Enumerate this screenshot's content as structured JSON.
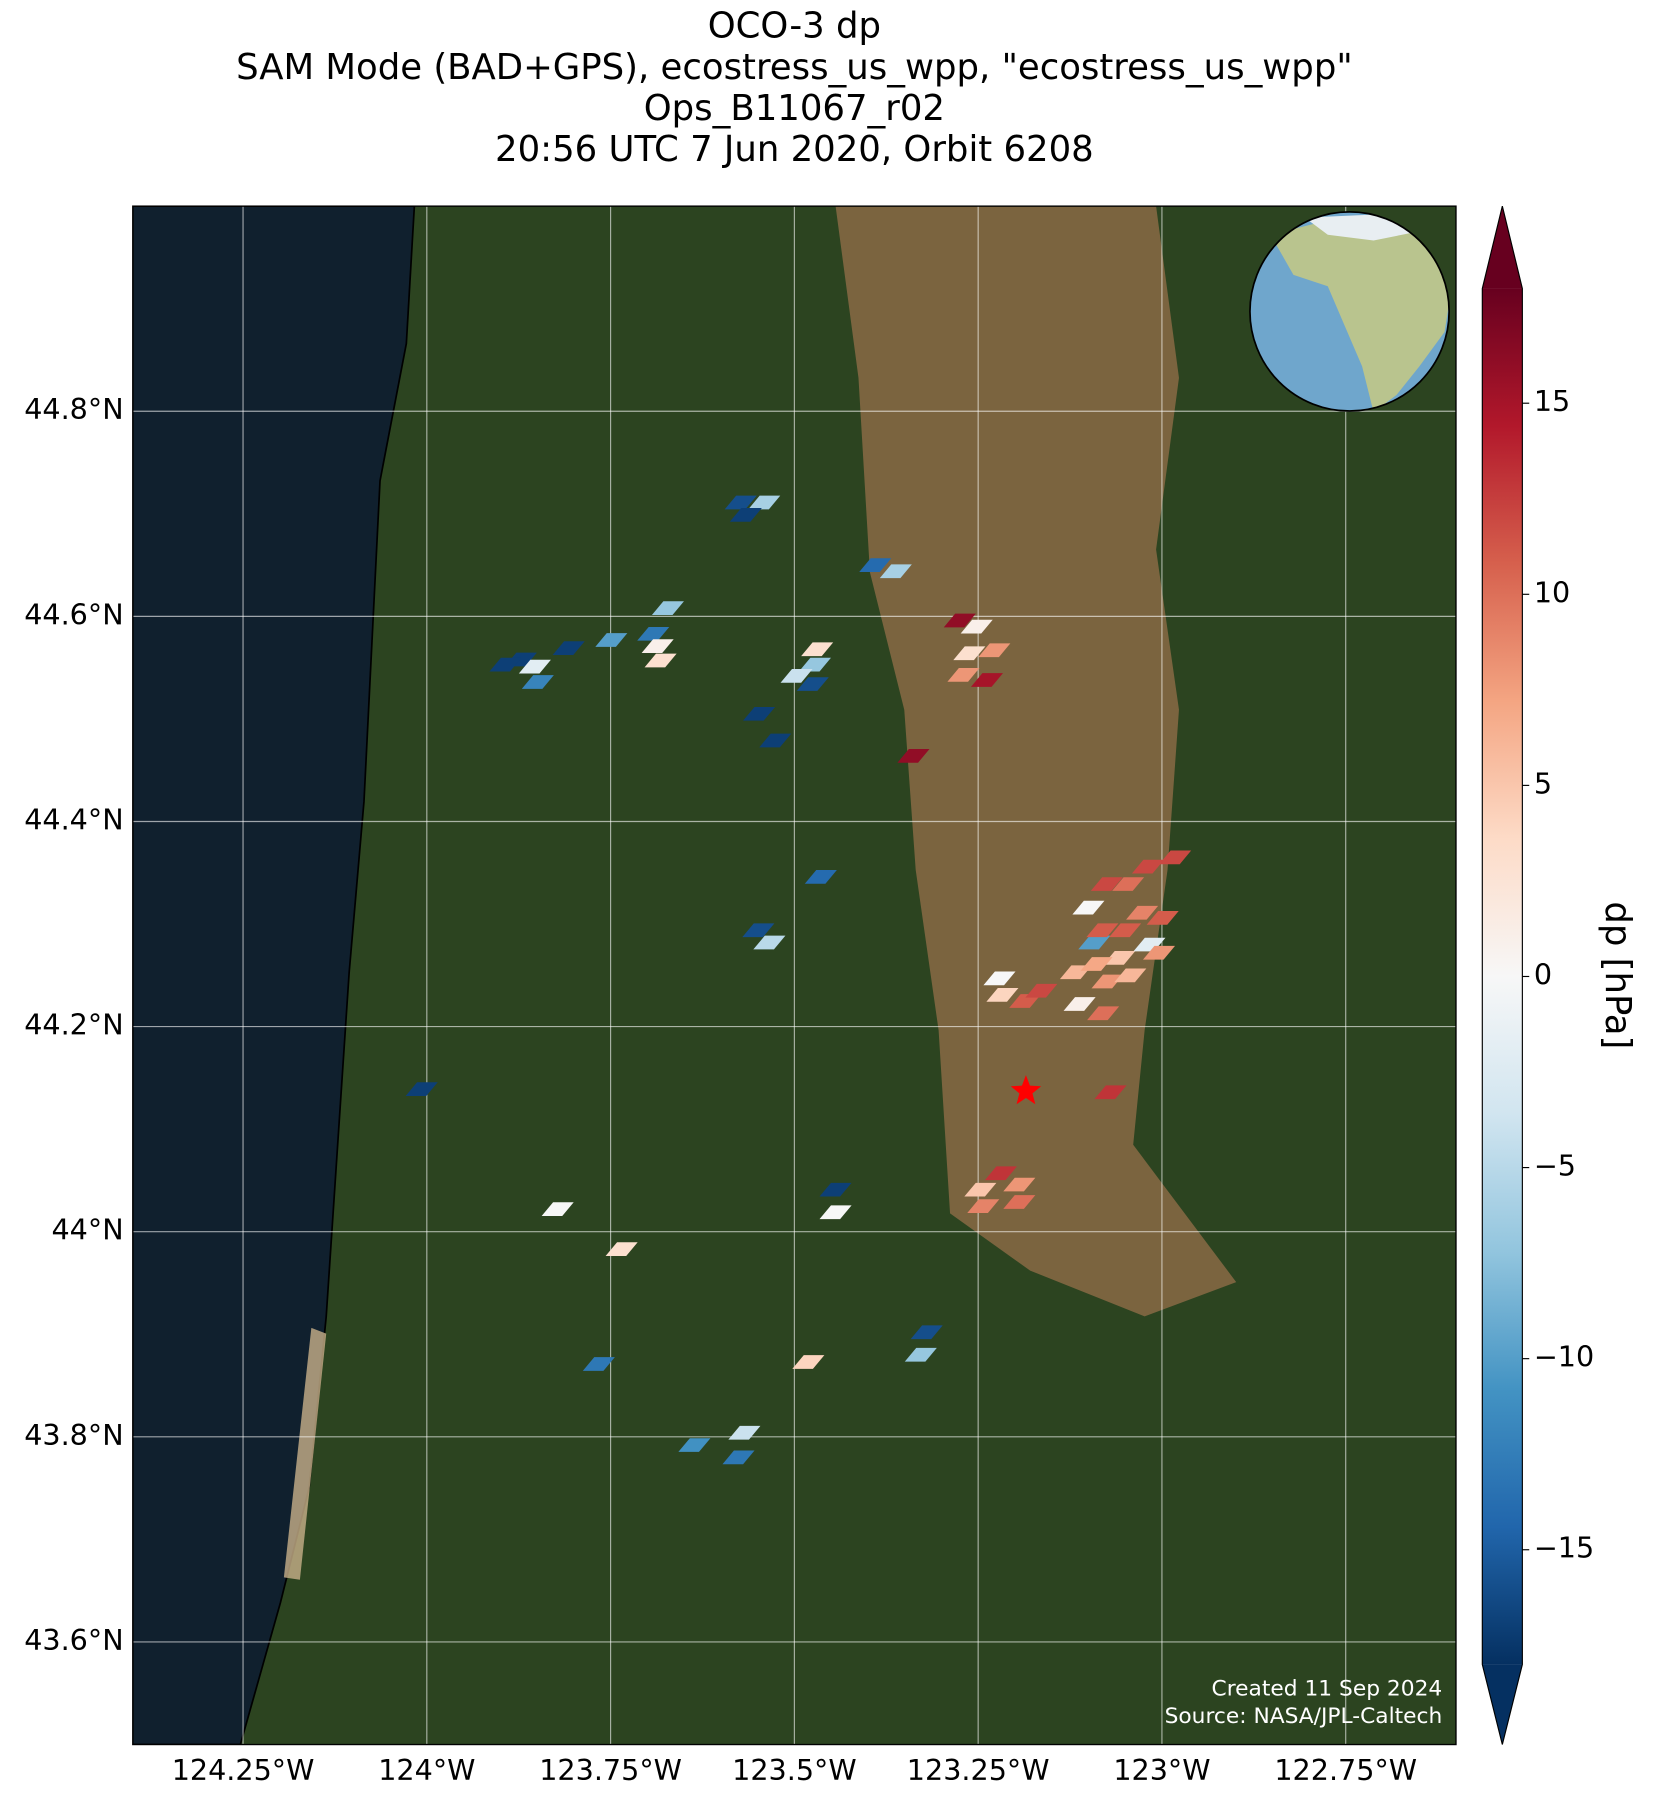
{
  "chart_data": {
    "type": "map",
    "title": [
      "OCO-3 dp",
      "SAM Mode (BAD+GPS), ecostress_us_wpp, \"ecostress_us_wpp\"",
      "Ops_B11067_r02",
      "20:56 UTC 7 Jun 2020, Orbit 6208"
    ],
    "xlim": [
      -124.4,
      -122.6
    ],
    "ylim": [
      43.5,
      45.0
    ],
    "xticks": [
      {
        "value": -124.25,
        "label": "124.25°W"
      },
      {
        "value": -124,
        "label": "124°W"
      },
      {
        "value": -123.75,
        "label": "123.75°W"
      },
      {
        "value": -123.5,
        "label": "123.5°W"
      },
      {
        "value": -123.25,
        "label": "123.25°W"
      },
      {
        "value": -123,
        "label": "123°W"
      },
      {
        "value": -122.75,
        "label": "122.75°W"
      }
    ],
    "yticks": [
      {
        "value": 43.6,
        "label": "43.6°N"
      },
      {
        "value": 43.8,
        "label": "43.8°N"
      },
      {
        "value": 44,
        "label": "44°N"
      },
      {
        "value": 44.2,
        "label": "44.2°N"
      },
      {
        "value": 44.4,
        "label": "44.4°N"
      },
      {
        "value": 44.6,
        "label": "44.6°N"
      },
      {
        "value": 44.8,
        "label": "44.8°N"
      }
    ],
    "grid": true,
    "colorbar_label": "dp [hPa]",
    "clim": [
      -18,
      18
    ],
    "colormap": [
      "#053061",
      "#2166ac",
      "#4393c3",
      "#92c5de",
      "#d1e5f0",
      "#f7f7f7",
      "#fddbc7",
      "#f4a582",
      "#d6604d",
      "#b2182b",
      "#67001f"
    ],
    "cticks": [
      {
        "value": -15,
        "label": "−15"
      },
      {
        "value": -10,
        "label": "−10"
      },
      {
        "value": -5,
        "label": "−5"
      },
      0,
      5,
      10,
      15
    ],
    "target": [
      -123.185,
      44.137
    ],
    "credits": [
      "Created 11 Sep 2024",
      "Source: NASA/JPL-Caltech"
    ],
    "footprints": [
      [
        -123.573,
        44.711,
        -16
      ],
      [
        -123.541,
        44.711,
        -6
      ],
      [
        -123.566,
        44.699,
        -17
      ],
      [
        -123.39,
        44.65,
        -14
      ],
      [
        -123.362,
        44.644,
        -6
      ],
      [
        -123.672,
        44.608,
        -7
      ],
      [
        -123.692,
        44.583,
        -13
      ],
      [
        -123.686,
        44.571,
        1
      ],
      [
        -123.682,
        44.557,
        3
      ],
      [
        -123.749,
        44.577,
        -10
      ],
      [
        -123.807,
        44.569,
        -17
      ],
      [
        -123.872,
        44.558,
        -17
      ],
      [
        -123.853,
        44.551,
        -2
      ],
      [
        -123.849,
        44.536,
        -12
      ],
      [
        -123.893,
        44.553,
        -17
      ],
      [
        -123.469,
        44.568,
        3
      ],
      [
        -123.472,
        44.553,
        -7
      ],
      [
        -123.497,
        44.542,
        -4
      ],
      [
        -123.475,
        44.534,
        -16
      ],
      [
        -123.548,
        44.505,
        -17
      ],
      [
        -123.526,
        44.479,
        -17
      ],
      [
        -123.275,
        44.596,
        16
      ],
      [
        -123.252,
        44.59,
        1
      ],
      [
        -123.262,
        44.564,
        3
      ],
      [
        -123.228,
        44.567,
        8
      ],
      [
        -123.27,
        44.543,
        8
      ],
      [
        -123.238,
        44.538,
        15
      ],
      [
        -123.338,
        44.464,
        16
      ],
      [
        -123.464,
        44.346,
        -14
      ],
      [
        -123.549,
        44.294,
        -16
      ],
      [
        -123.534,
        44.282,
        -5
      ],
      [
        -124.007,
        44.139,
        -17
      ],
      [
        -123.822,
        44.022,
        0
      ],
      [
        -123.735,
        43.983,
        3
      ],
      [
        -123.444,
        44.041,
        -17
      ],
      [
        -123.444,
        44.019,
        0
      ],
      [
        -123.766,
        43.871,
        -13
      ],
      [
        -123.481,
        43.873,
        4
      ],
      [
        -123.32,
        43.902,
        -16
      ],
      [
        -123.328,
        43.88,
        -7
      ],
      [
        -123.636,
        43.792,
        -11
      ],
      [
        -123.568,
        43.804,
        -4
      ],
      [
        -123.576,
        43.78,
        -13
      ],
      [
        -123.221,
        44.247,
        0
      ],
      [
        -123.217,
        44.231,
        4
      ],
      [
        -123.186,
        44.225,
        11
      ],
      [
        -123.164,
        44.235,
        12
      ],
      [
        -123.1,
        44.316,
        0
      ],
      [
        -123.092,
        44.282,
        -10
      ],
      [
        -123.112,
        44.222,
        1
      ],
      [
        -123.08,
        44.213,
        10
      ],
      [
        -123.074,
        44.244,
        8
      ],
      [
        -123.058,
        44.267,
        5
      ],
      [
        -123.05,
        44.294,
        11
      ],
      [
        -123.075,
        44.339,
        12
      ],
      [
        -123.046,
        44.339,
        10
      ],
      [
        -123.019,
        44.356,
        12
      ],
      [
        -122.982,
        44.365,
        12
      ],
      [
        -123.017,
        44.28,
        -2
      ],
      [
        -123.027,
        44.311,
        9
      ],
      [
        -123.117,
        44.253,
        6
      ],
      [
        -123.089,
        44.261,
        7
      ],
      [
        -123.043,
        44.25,
        6
      ],
      [
        -123.004,
        44.272,
        8
      ],
      [
        -123.081,
        44.294,
        11
      ],
      [
        -122.999,
        44.306,
        11
      ],
      [
        -123.07,
        44.136,
        13
      ],
      [
        -123.247,
        44.041,
        5
      ],
      [
        -123.243,
        44.025,
        9
      ],
      [
        -123.219,
        44.057,
        13
      ],
      [
        -123.194,
        44.046,
        8
      ],
      [
        -123.194,
        44.029,
        10
      ]
    ]
  }
}
